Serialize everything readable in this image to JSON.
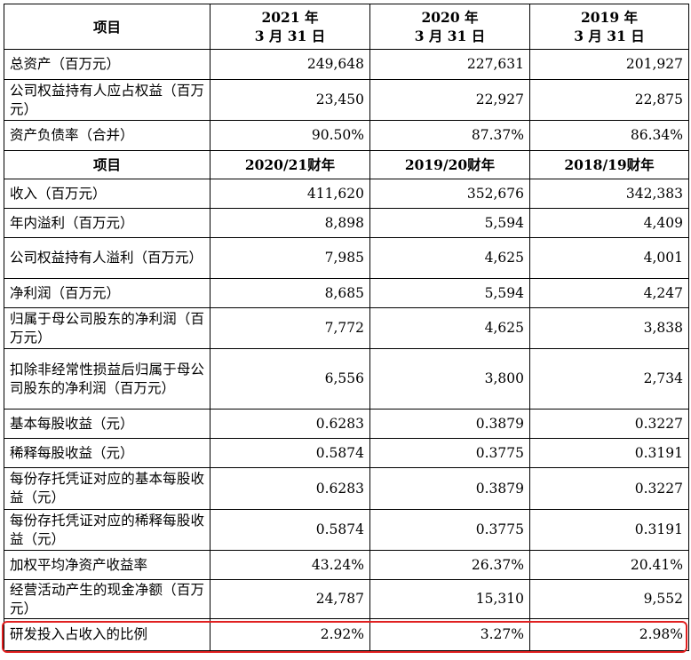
{
  "balance": {
    "header": {
      "item": "项目",
      "cols": [
        [
          "2021 年",
          "3 月 31 日"
        ],
        [
          "2020 年",
          "3 月 31 日"
        ],
        [
          "2019 年",
          "3 月 31 日"
        ]
      ]
    },
    "rows": [
      {
        "label": "总资产（百万元）",
        "values": [
          "249,648",
          "227,631",
          "201,927"
        ]
      },
      {
        "label": "公司权益持有人应占权益（百万元）",
        "values": [
          "23,450",
          "22,927",
          "22,875"
        ]
      },
      {
        "label": "资产负债率（合并）",
        "values": [
          "90.50%",
          "87.37%",
          "86.34%"
        ]
      }
    ]
  },
  "income": {
    "header": {
      "item": "项目",
      "cols": [
        "2020/21财年",
        "2019/20财年",
        "2018/19财年"
      ]
    },
    "rows": [
      {
        "label": "收入（百万元）",
        "values": [
          "411,620",
          "352,676",
          "342,383"
        ]
      },
      {
        "label": "年内溢利（百万元）",
        "values": [
          "8,898",
          "5,594",
          "4,409"
        ]
      },
      {
        "label": "公司权益持有人溢利（百万元）",
        "values": [
          "7,985",
          "4,625",
          "4,001"
        ]
      },
      {
        "label": "净利润（百万元）",
        "values": [
          "8,685",
          "5,594",
          "4,247"
        ]
      },
      {
        "label": "归属于母公司股东的净利润（百万元）",
        "values": [
          "7,772",
          "4,625",
          "3,838"
        ]
      },
      {
        "label": "扣除非经常性损益后归属于母公司股东的净利润（百万元）",
        "values": [
          "6,556",
          "3,800",
          "2,734"
        ]
      },
      {
        "label": "基本每股收益（元）",
        "values": [
          "0.6283",
          "0.3879",
          "0.3227"
        ]
      },
      {
        "label": "稀释每股收益（元）",
        "values": [
          "0.5874",
          "0.3775",
          "0.3191"
        ]
      },
      {
        "label": "每份存托凭证对应的基本每股收益（元）",
        "values": [
          "0.6283",
          "0.3879",
          "0.3227"
        ]
      },
      {
        "label": "每份存托凭证对应的稀释每股收益（元）",
        "values": [
          "0.5874",
          "0.3775",
          "0.3191"
        ]
      },
      {
        "label": "加权平均净资产收益率",
        "values": [
          "43.24%",
          "26.37%",
          "20.41%"
        ]
      },
      {
        "label": "经营活动产生的现金净额（百万元）",
        "values": [
          "24,787",
          "15,310",
          "9,552"
        ]
      },
      {
        "label": "研发投入占收入的比例",
        "values": [
          "2.92%",
          "3.27%",
          "2.98%"
        ]
      }
    ]
  },
  "colors": {
    "highlight": "#e02020"
  }
}
